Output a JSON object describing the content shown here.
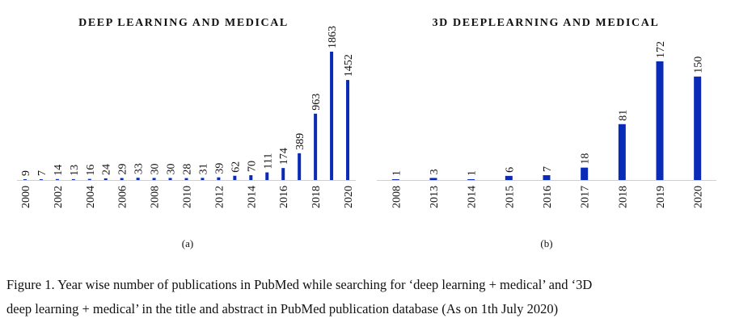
{
  "chart_data": [
    {
      "type": "bar",
      "title": "DEEP LEARNING AND MEDICAL",
      "panel_label": "(a)",
      "categories": [
        "2000",
        "2001",
        "2002",
        "2003",
        "2004",
        "2005",
        "2006",
        "2007",
        "2008",
        "2009",
        "2010",
        "2011",
        "2012",
        "2013",
        "2014",
        "2015",
        "2016",
        "2017",
        "2018",
        "2019",
        "2020"
      ],
      "tick_labels": [
        "2000",
        "",
        "2002",
        "",
        "2004",
        "",
        "2006",
        "",
        "2008",
        "",
        "2010",
        "",
        "2012",
        "",
        "2014",
        "",
        "2016",
        "",
        "2018",
        "",
        "2020"
      ],
      "values": [
        9,
        7,
        14,
        13,
        16,
        24,
        29,
        33,
        30,
        30,
        28,
        31,
        39,
        62,
        70,
        111,
        174,
        389,
        963,
        1863,
        1452
      ],
      "ylim": [
        0,
        1863
      ],
      "xlabel": "",
      "ylabel": "",
      "grid": false,
      "legend": "none",
      "bar_color": "#0a2bb8"
    },
    {
      "type": "bar",
      "title": "3D DEEPLEARNING AND MEDICAL",
      "panel_label": "(b)",
      "categories": [
        "2008",
        "2013",
        "2014",
        "2015",
        "2016",
        "2017",
        "2018",
        "2019",
        "2020"
      ],
      "tick_labels": [
        "2008",
        "2013",
        "2014",
        "2015",
        "2016",
        "2017",
        "2018",
        "2019",
        "2020"
      ],
      "values": [
        1,
        3,
        1,
        6,
        7,
        18,
        81,
        172,
        150
      ],
      "ylim": [
        0,
        172
      ],
      "xlabel": "",
      "ylabel": "",
      "grid": false,
      "legend": "none",
      "bar_color": "#0a2bb8"
    }
  ],
  "caption": {
    "line1": "Figure 1. Year wise number of publications in PubMed while searching for ‘deep learning + medical’ and ‘3D",
    "line2": "deep learning + medical’ in the title and abstract in PubMed publication database (As on 1th July 2020)"
  },
  "colors": {
    "bar": "#0a2bb8",
    "axis": "#cfcfcf",
    "text": "#111111"
  }
}
